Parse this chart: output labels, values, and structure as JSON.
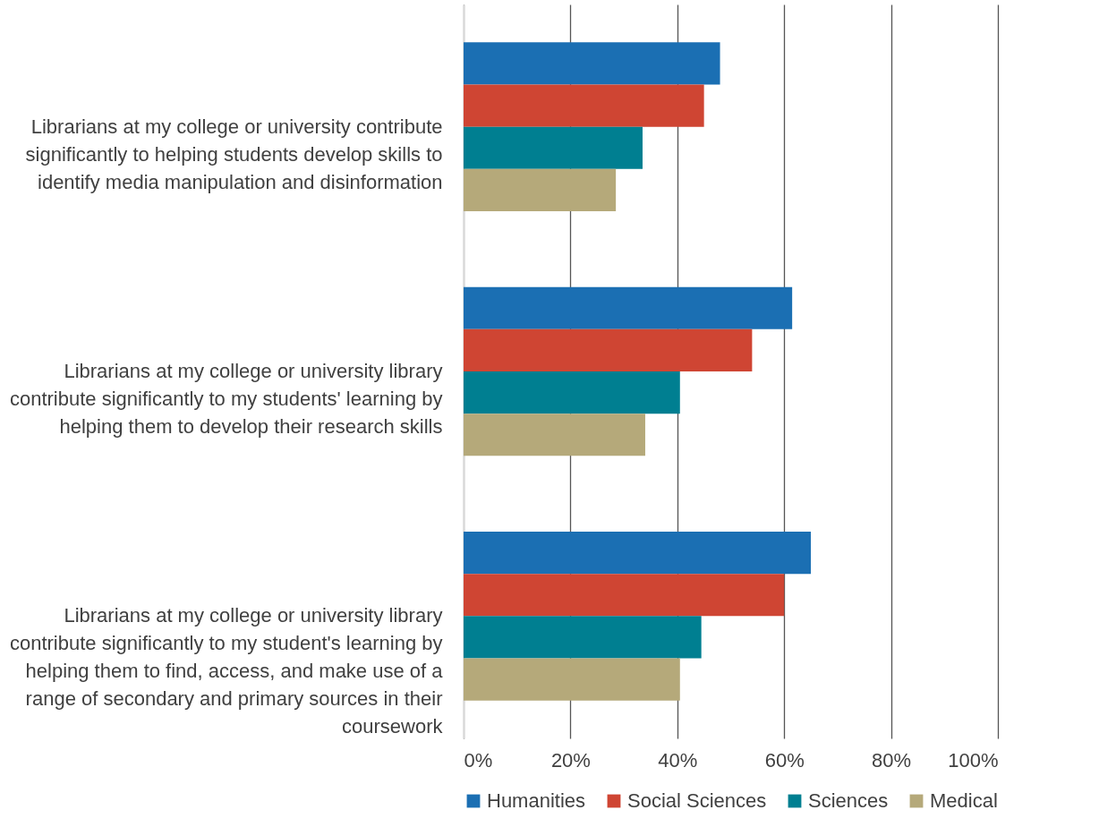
{
  "chart_data": {
    "type": "bar",
    "orientation": "horizontal",
    "categories": [
      "Librarians at my college or university contribute significantly to helping students develop skills to identify media manipulation and disinformation",
      "Librarians at my college or university library contribute significantly to my students' learning by helping them to develop their research skills",
      "Librarians at my college or university library contribute significantly to my student's learning by helping them to find, access, and make use of a range of secondary and primary sources in their coursework"
    ],
    "series": [
      {
        "name": "Humanities",
        "color": "#1b6fb3",
        "values": [
          48,
          61.5,
          65
        ]
      },
      {
        "name": "Social Sciences",
        "color": "#cf4533",
        "values": [
          45,
          54,
          60
        ]
      },
      {
        "name": "Sciences",
        "color": "#007f91",
        "values": [
          33.5,
          40.5,
          44.5
        ]
      },
      {
        "name": "Medical",
        "color": "#b5a97a",
        "values": [
          28.5,
          34,
          40.5
        ]
      }
    ],
    "xlim": [
      0,
      100
    ],
    "xticks": [
      {
        "value": 0,
        "label": "0%"
      },
      {
        "value": 20,
        "label": "20%"
      },
      {
        "value": 40,
        "label": "40%"
      },
      {
        "value": 60,
        "label": "60%"
      },
      {
        "value": 80,
        "label": "80%"
      },
      {
        "value": 100,
        "label": "100%"
      }
    ],
    "grid": "x",
    "legend": "bottom"
  }
}
